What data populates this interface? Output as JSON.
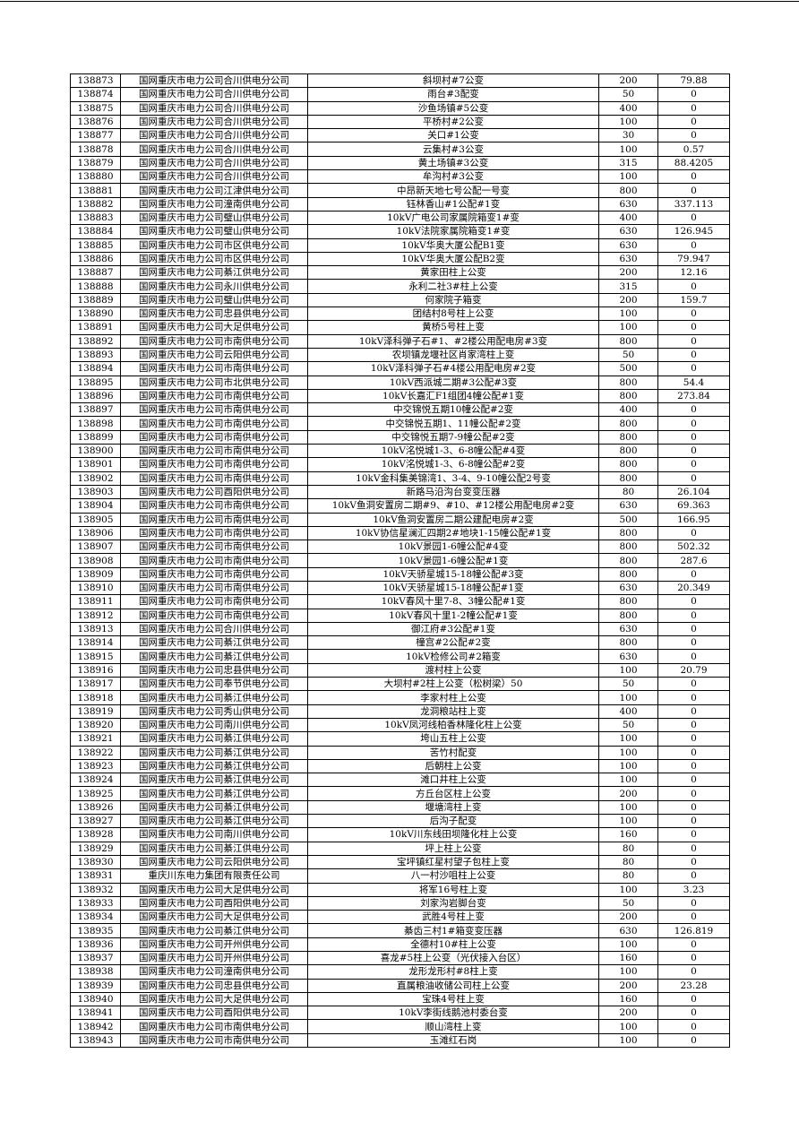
{
  "rows": [
    [
      "138873",
      "国网重庆市电力公司合川供电分公司",
      "斜坝村#7公变",
      "200",
      "79.88"
    ],
    [
      "138874",
      "国网重庆市电力公司合川供电分公司",
      "雨台#3配变",
      "50",
      "0"
    ],
    [
      "138875",
      "国网重庆市电力公司合川供电分公司",
      "沙鱼场镇#5公变",
      "400",
      "0"
    ],
    [
      "138876",
      "国网重庆市电力公司合川供电分公司",
      "平桥村#2公变",
      "100",
      "0"
    ],
    [
      "138877",
      "国网重庆市电力公司合川供电分公司",
      "关口#1公变",
      "30",
      "0"
    ],
    [
      "138878",
      "国网重庆市电力公司合川供电分公司",
      "云集村#3公变",
      "100",
      "0.57"
    ],
    [
      "138879",
      "国网重庆市电力公司合川供电分公司",
      "黄土场镇#3公变",
      "315",
      "88.4205"
    ],
    [
      "138880",
      "国网重庆市电力公司合川供电分公司",
      "牟沟村#3公变",
      "100",
      "0"
    ],
    [
      "138881",
      "国网重庆市电力公司江津供电分公司",
      "中昂新天地七号公配一号变",
      "800",
      "0"
    ],
    [
      "138882",
      "国网重庆市电力公司潼南供电分公司",
      "钰林香山#1公配#1变",
      "630",
      "337.113"
    ],
    [
      "138883",
      "国网重庆市电力公司璧山供电分公司",
      "10kV广电公司家属院箱变1#变",
      "400",
      "0"
    ],
    [
      "138884",
      "国网重庆市电力公司璧山供电分公司",
      "10kV法院家属院箱变1#变",
      "630",
      "126.945"
    ],
    [
      "138885",
      "国网重庆市电力公司市区供电分公司",
      "10kV华奥大厦公配B1变",
      "630",
      "0"
    ],
    [
      "138886",
      "国网重庆市电力公司市区供电分公司",
      "10kV华奥大厦公配B2变",
      "630",
      "79.947"
    ],
    [
      "138887",
      "国网重庆市电力公司綦江供电分公司",
      "黄家田柱上公变",
      "200",
      "12.16"
    ],
    [
      "138888",
      "国网重庆市电力公司永川供电分公司",
      "永利二社3#柱上公变",
      "315",
      "0"
    ],
    [
      "138889",
      "国网重庆市电力公司璧山供电分公司",
      "何家院子箱变",
      "200",
      "159.7"
    ],
    [
      "138890",
      "国网重庆市电力公司忠县供电分公司",
      "团结村8号柱上公变",
      "100",
      "0"
    ],
    [
      "138891",
      "国网重庆市电力公司大足供电分公司",
      "黄桥5号柱上变",
      "100",
      "0"
    ],
    [
      "138892",
      "国网重庆市电力公司市南供电分公司",
      "10kV泽科弹子石#1、#2楼公用配电房#3变",
      "800",
      "0"
    ],
    [
      "138893",
      "国网重庆市电力公司云阳供电分公司",
      "农坝镇龙堰社区肖家湾柱上变",
      "50",
      "0"
    ],
    [
      "138894",
      "国网重庆市电力公司市南供电分公司",
      "10kV泽科弹子石#4楼公用配电房#2变",
      "500",
      "0"
    ],
    [
      "138895",
      "国网重庆市电力公司市北供电分公司",
      "10kV西派城二期#3公配#3变",
      "800",
      "54.4"
    ],
    [
      "138896",
      "国网重庆市电力公司市南供电分公司",
      "10kV长嘉汇F1组团4幢公配#1变",
      "800",
      "273.84"
    ],
    [
      "138897",
      "国网重庆市电力公司市南供电分公司",
      "中交锦悦五期10幢公配#2变",
      "400",
      "0"
    ],
    [
      "138898",
      "国网重庆市电力公司市南供电分公司",
      "中交锦悦五期1、11幢公配#2变",
      "800",
      "0"
    ],
    [
      "138899",
      "国网重庆市电力公司市南供电分公司",
      "中交锦悦五期7-9幢公配#2变",
      "800",
      "0"
    ],
    [
      "138900",
      "国网重庆市电力公司市南供电分公司",
      "10kV洺悦城1-3、6-8幢公配#4变",
      "800",
      "0"
    ],
    [
      "138901",
      "国网重庆市电力公司市南供电分公司",
      "10kV洺悦城1-3、6-8幢公配#2变",
      "800",
      "0"
    ],
    [
      "138902",
      "国网重庆市电力公司市南供电分公司",
      "10kV金科集美锦湾1、3-4、9-10幢公配2号变",
      "800",
      "0"
    ],
    [
      "138903",
      "国网重庆市电力公司酉阳供电分公司",
      "新路马沿沟台变变压器",
      "80",
      "26.104"
    ],
    [
      "138904",
      "国网重庆市电力公司市南供电分公司",
      "10kV鱼洞安置房二期#9、#10、#12楼公用配电房#2变",
      "630",
      "69.363"
    ],
    [
      "138905",
      "国网重庆市电力公司市南供电分公司",
      "10kV鱼洞安置房二期公建配电房#2变",
      "500",
      "166.95"
    ],
    [
      "138906",
      "国网重庆市电力公司市南供电分公司",
      "10kV协信星澜汇四期2#地块1-15幢公配#1变",
      "800",
      "0"
    ],
    [
      "138907",
      "国网重庆市电力公司市南供电分公司",
      "10kV景园1-6幢公配#4变",
      "800",
      "502.32"
    ],
    [
      "138908",
      "国网重庆市电力公司市南供电分公司",
      "10kV景园1-6幢公配#1变",
      "800",
      "287.6"
    ],
    [
      "138909",
      "国网重庆市电力公司市南供电分公司",
      "10kV天骄星城15-18幢公配#3变",
      "800",
      "0"
    ],
    [
      "138910",
      "国网重庆市电力公司市南供电分公司",
      "10kV天骄星城15-18幢公配#1变",
      "630",
      "20.349"
    ],
    [
      "138911",
      "国网重庆市电力公司市南供电分公司",
      "10kV春风十里7-8、3幢公配#1变",
      "800",
      "0"
    ],
    [
      "138912",
      "国网重庆市电力公司市南供电分公司",
      "10kV春风十里1-2幢公配#1变",
      "800",
      "0"
    ],
    [
      "138913",
      "国网重庆市电力公司合川供电分公司",
      "御江府#3公配#1变",
      "630",
      "0"
    ],
    [
      "138914",
      "国网重庆市电力公司綦江供电分公司",
      "橦宫#2公配#2变",
      "800",
      "0"
    ],
    [
      "138915",
      "国网重庆市电力公司綦江供电分公司",
      "10kV检修公司#2箱变",
      "630",
      "0"
    ],
    [
      "138916",
      "国网重庆市电力公司忠县供电分公司",
      "渡村柱上公变",
      "100",
      "20.79"
    ],
    [
      "138917",
      "国网重庆市电力公司奉节供电分公司",
      "大坝村#2柱上公变（松树梁）50",
      "50",
      "0"
    ],
    [
      "138918",
      "国网重庆市电力公司綦江供电分公司",
      "李家村柱上公变",
      "100",
      "0"
    ],
    [
      "138919",
      "国网重庆市电力公司秀山供电分公司",
      "龙洞粮站柱上变",
      "400",
      "0"
    ],
    [
      "138920",
      "国网重庆市电力公司南川供电分公司",
      "10kV凤河线柏香林隆化柱上公变",
      "50",
      "0"
    ],
    [
      "138921",
      "国网重庆市电力公司綦江供电分公司",
      "垮山五柱上公变",
      "100",
      "0"
    ],
    [
      "138922",
      "国网重庆市电力公司綦江供电分公司",
      "苦竹村配变",
      "100",
      "0"
    ],
    [
      "138923",
      "国网重庆市电力公司綦江供电分公司",
      "后朝柱上公变",
      "100",
      "0"
    ],
    [
      "138924",
      "国网重庆市电力公司綦江供电分公司",
      "滩口井柱上公变",
      "100",
      "0"
    ],
    [
      "138925",
      "国网重庆市电力公司綦江供电分公司",
      "方丘台区柱上公变",
      "200",
      "0"
    ],
    [
      "138926",
      "国网重庆市电力公司綦江供电分公司",
      "堰塘湾柱上变",
      "100",
      "0"
    ],
    [
      "138927",
      "国网重庆市电力公司綦江供电分公司",
      "后沟子配变",
      "100",
      "0"
    ],
    [
      "138928",
      "国网重庆市电力公司南川供电分公司",
      "10kV川东线田坝隆化柱上公变",
      "160",
      "0"
    ],
    [
      "138929",
      "国网重庆市电力公司綦江供电分公司",
      "坪上柱上公变",
      "80",
      "0"
    ],
    [
      "138930",
      "国网重庆市电力公司云阳供电分公司",
      "宝坪镇红星村望子包柱上变",
      "80",
      "0"
    ],
    [
      "138931",
      "重庆川东电力集团有限责任公司",
      "八一村沙咀柱上公变",
      "80",
      "0"
    ],
    [
      "138932",
      "国网重庆市电力公司大足供电分公司",
      "将军16号柱上变",
      "100",
      "3.23"
    ],
    [
      "138933",
      "国网重庆市电力公司酉阳供电分公司",
      "刘家沟岩脚台变",
      "50",
      "0"
    ],
    [
      "138934",
      "国网重庆市电力公司大足供电分公司",
      "武胜4号柱上变",
      "200",
      "0"
    ],
    [
      "138935",
      "国网重庆市电力公司綦江供电分公司",
      "綦齿三村1#箱变变压器",
      "630",
      "126.819"
    ],
    [
      "138936",
      "国网重庆市电力公司开州供电分公司",
      "全德村10#柱上公变",
      "100",
      "0"
    ],
    [
      "138937",
      "国网重庆市电力公司开州供电分公司",
      "喜龙#5柱上公变（光伏接入台区）",
      "160",
      "0"
    ],
    [
      "138938",
      "国网重庆市电力公司潼南供电分公司",
      "龙形龙形村#8柱上变",
      "100",
      "0"
    ],
    [
      "138939",
      "国网重庆市电力公司忠县供电分公司",
      "直属粮油收储公司柱上公变",
      "200",
      "23.28"
    ],
    [
      "138940",
      "国网重庆市电力公司大足供电分公司",
      "宝珠4号柱上变",
      "160",
      "0"
    ],
    [
      "138941",
      "国网重庆市电力公司酉阳供电分公司",
      "10kV李街线鹅池村委台变",
      "200",
      "0"
    ],
    [
      "138942",
      "国网重庆市电力公司市南供电分公司",
      "顺山湾柱上变",
      "100",
      "0"
    ],
    [
      "138943",
      "国网重庆市电力公司市南供电分公司",
      "玉滩红石岗",
      "100",
      "0"
    ]
  ]
}
